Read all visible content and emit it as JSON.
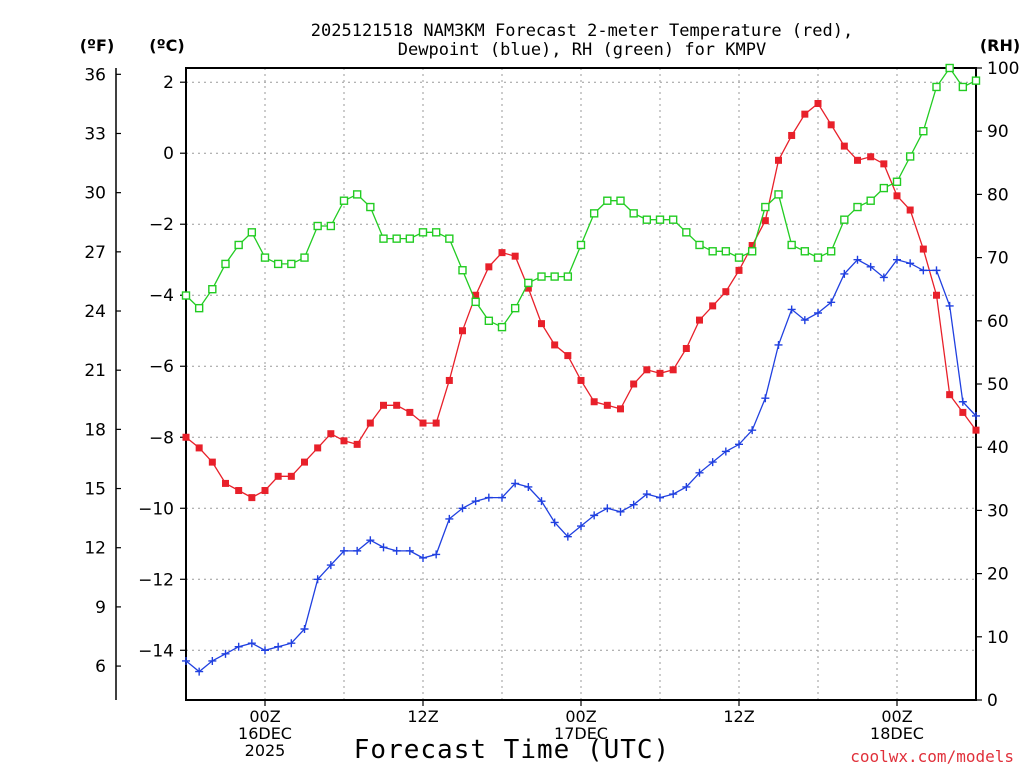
{
  "chart_data": {
    "type": "line",
    "title": "2025121518 NAM3KM Forecast 2-meter Temperature (red),",
    "subtitle": "Dewpoint (blue), RH (green) for KMPV",
    "xlabel": "Forecast Time (UTC)",
    "credit": "coolwx.com/models",
    "units": {
      "left_outer": "(ºF)",
      "left_inner": "(ºC)",
      "right": "(RH)"
    },
    "x_tick_labels": [
      {
        "hour": 6,
        "lines": [
          "00Z",
          "16DEC",
          "2025"
        ]
      },
      {
        "hour": 18,
        "lines": [
          "12Z"
        ]
      },
      {
        "hour": 30,
        "lines": [
          "00Z",
          "17DEC"
        ]
      },
      {
        "hour": 42,
        "lines": [
          "12Z"
        ]
      },
      {
        "hour": 54,
        "lines": [
          "00Z",
          "18DEC"
        ]
      }
    ],
    "x_range_hours": [
      0,
      60
    ],
    "celsius_axis": {
      "range": [
        -15.4,
        2.4
      ],
      "ticks": [
        2,
        0,
        -2,
        -4,
        -6,
        -8,
        -10,
        -12,
        -14
      ]
    },
    "fahrenheit_axis": {
      "ticks": [
        36,
        33,
        30,
        27,
        24,
        21,
        18,
        15,
        12,
        9,
        6
      ]
    },
    "rh_axis": {
      "range": [
        0,
        100
      ],
      "ticks": [
        100,
        90,
        80,
        70,
        60,
        50,
        40,
        30,
        20,
        10,
        0
      ]
    },
    "x_hours": [
      0,
      1,
      2,
      3,
      4,
      5,
      6,
      7,
      8,
      9,
      10,
      11,
      12,
      13,
      14,
      15,
      16,
      17,
      18,
      19,
      20,
      21,
      22,
      23,
      24,
      25,
      26,
      27,
      28,
      29,
      30,
      31,
      32,
      33,
      34,
      35,
      36,
      37,
      38,
      39,
      40,
      41,
      42,
      43,
      44,
      45,
      46,
      47,
      48,
      49,
      50,
      51,
      52,
      53,
      54,
      55,
      56,
      57,
      58,
      59,
      60
    ],
    "series": [
      {
        "name": "Temperature (°C)",
        "color": "#e8202a",
        "marker": "filled-square",
        "axis": "celsius",
        "values": [
          -8.0,
          -8.3,
          -8.7,
          -9.3,
          -9.5,
          -9.7,
          -9.5,
          -9.1,
          -9.1,
          -8.7,
          -8.3,
          -7.9,
          -8.1,
          -8.2,
          -7.6,
          -7.1,
          -7.1,
          -7.3,
          -7.6,
          -7.6,
          -6.4,
          -5.0,
          -4.0,
          -3.2,
          -2.8,
          -2.9,
          -3.8,
          -4.8,
          -5.4,
          -5.7,
          -6.4,
          -7.0,
          -7.1,
          -7.2,
          -6.5,
          -6.1,
          -6.2,
          -6.1,
          -5.5,
          -4.7,
          -4.3,
          -3.9,
          -3.3,
          -2.6,
          -1.9,
          -0.2,
          0.5,
          1.1,
          1.4,
          0.8,
          0.2,
          -0.2,
          -0.1,
          -0.3,
          -1.2,
          -1.6,
          -2.7,
          -4.0,
          -6.8,
          -7.3,
          -7.8
        ]
      },
      {
        "name": "Dewpoint (°C)",
        "color": "#2040e0",
        "marker": "plus",
        "axis": "celsius",
        "values": [
          -14.3,
          -14.6,
          -14.3,
          -14.1,
          -13.9,
          -13.8,
          -14.0,
          -13.9,
          -13.8,
          -13.4,
          -12.0,
          -11.6,
          -11.2,
          -11.2,
          -10.9,
          -11.1,
          -11.2,
          -11.2,
          -11.4,
          -11.3,
          -10.3,
          -10.0,
          -9.8,
          -9.7,
          -9.7,
          -9.3,
          -9.4,
          -9.8,
          -10.4,
          -10.8,
          -10.5,
          -10.2,
          -10.0,
          -10.1,
          -9.9,
          -9.6,
          -9.7,
          -9.6,
          -9.4,
          -9.0,
          -8.7,
          -8.4,
          -8.2,
          -7.8,
          -6.9,
          -5.4,
          -4.4,
          -4.7,
          -4.5,
          -4.2,
          -3.4,
          -3.0,
          -3.2,
          -3.5,
          -3.0,
          -3.1,
          -3.3,
          -3.3,
          -4.3,
          -7.0,
          -7.4
        ]
      },
      {
        "name": "Relative Humidity (%)",
        "color": "#22cc22",
        "marker": "open-square",
        "axis": "rh",
        "values": [
          64,
          62,
          65,
          69,
          72,
          74,
          70,
          69,
          69,
          70,
          75,
          75,
          79,
          80,
          78,
          73,
          73,
          73,
          74,
          74,
          73,
          68,
          63,
          60,
          59,
          62,
          66,
          67,
          67,
          67,
          72,
          77,
          79,
          79,
          77,
          76,
          76,
          76,
          74,
          72,
          71,
          71,
          70,
          71,
          78,
          80,
          72,
          71,
          70,
          71,
          76,
          78,
          79,
          81,
          82,
          86,
          90,
          97,
          100,
          97,
          98
        ]
      }
    ]
  }
}
